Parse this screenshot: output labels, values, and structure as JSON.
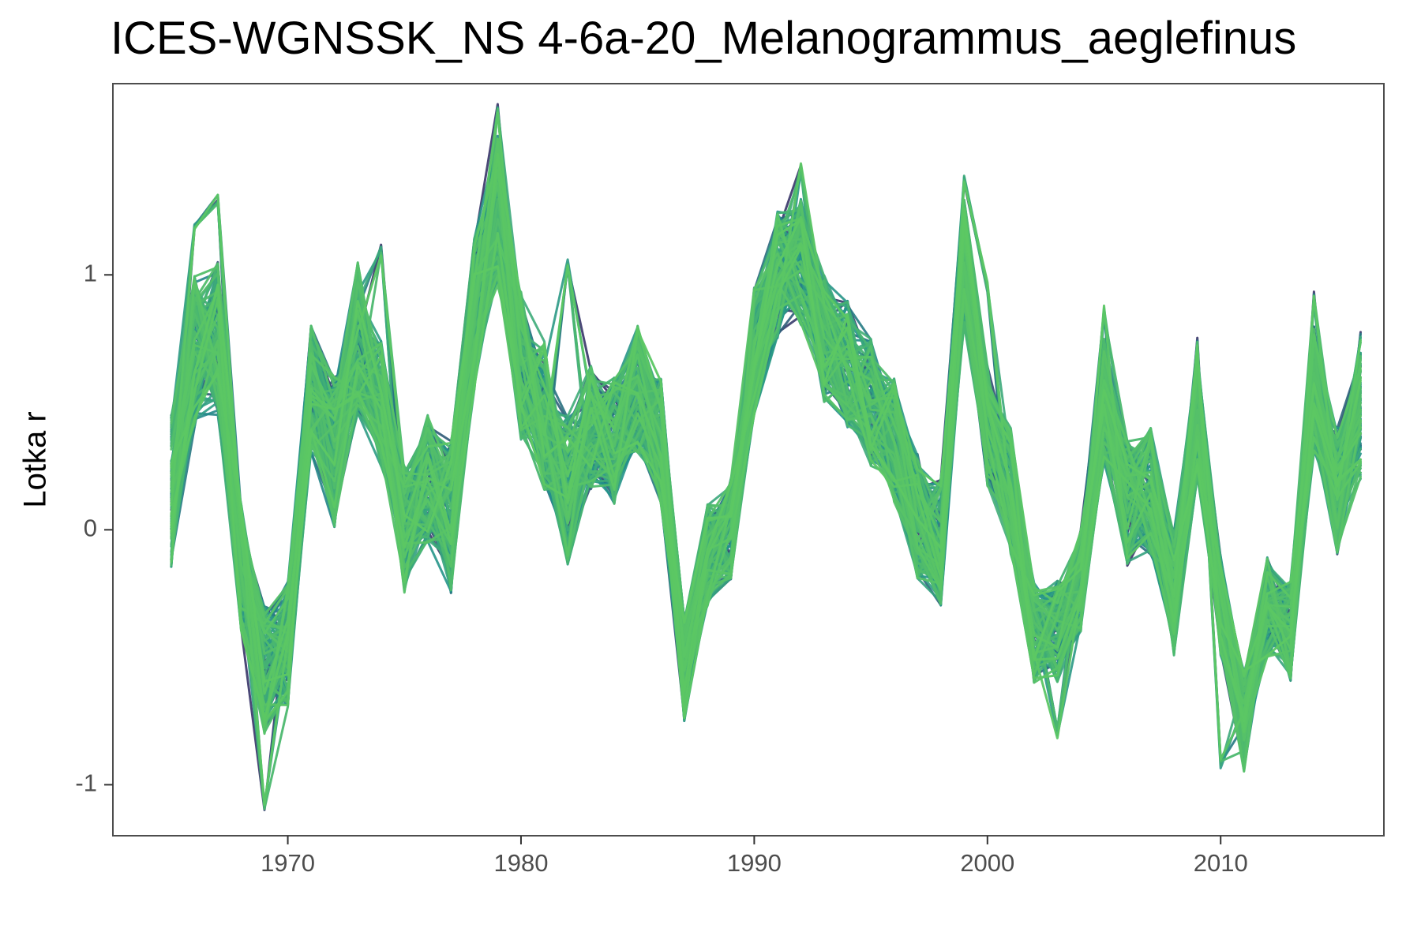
{
  "chart_data": {
    "type": "line",
    "title": "ICES-WGNSSK_NS  4-6a-20_Melanogrammus_aeglefinus",
    "xlabel": "",
    "ylabel": "Lotka r",
    "xlim": [
      1962.5,
      2017
    ],
    "ylim": [
      -1.2,
      1.75
    ],
    "x_ticks": [
      1970,
      1980,
      1990,
      2000,
      2010
    ],
    "y_ticks": [
      -1,
      0,
      1
    ],
    "grid": false,
    "legend": "none",
    "colors": {
      "viridis_low": "#440154",
      "viridis_mid": "#21908C",
      "viridis_high": "#5DC863",
      "panel_border": "#4d4d4d"
    },
    "x": [
      1965,
      1966,
      1967,
      1968,
      1969,
      1970,
      1971,
      1972,
      1973,
      1974,
      1975,
      1976,
      1977,
      1978,
      1979,
      1980,
      1981,
      1982,
      1983,
      1984,
      1985,
      1986,
      1987,
      1988,
      1989,
      1990,
      1991,
      1992,
      1993,
      1994,
      1995,
      1996,
      1997,
      1998,
      1999,
      2000,
      2001,
      2002,
      2003,
      2004,
      2005,
      2006,
      2007,
      2008,
      2009,
      2010,
      2011,
      2012,
      2013,
      2014,
      2015,
      2016
    ],
    "central_trajectory": [
      0.15,
      0.7,
      0.75,
      -0.15,
      -0.55,
      -0.45,
      0.55,
      0.3,
      0.75,
      0.5,
      0.0,
      0.2,
      0.05,
      0.85,
      1.25,
      0.65,
      0.45,
      0.15,
      0.4,
      0.35,
      0.55,
      0.35,
      -0.55,
      -0.1,
      0.0,
      0.7,
      1.0,
      1.05,
      0.75,
      0.65,
      0.5,
      0.35,
      0.05,
      -0.05,
      1.05,
      0.4,
      0.15,
      -0.4,
      -0.4,
      -0.2,
      0.5,
      0.1,
      0.15,
      -0.25,
      0.45,
      -0.3,
      -0.75,
      -0.3,
      -0.4,
      0.55,
      0.15,
      0.45
    ],
    "spread": [
      0.3,
      0.3,
      0.3,
      0.25,
      0.25,
      0.25,
      0.25,
      0.3,
      0.3,
      0.25,
      0.25,
      0.25,
      0.3,
      0.3,
      0.3,
      0.3,
      0.3,
      0.3,
      0.25,
      0.25,
      0.25,
      0.25,
      0.2,
      0.2,
      0.2,
      0.25,
      0.25,
      0.25,
      0.25,
      0.25,
      0.25,
      0.25,
      0.25,
      0.25,
      0.25,
      0.25,
      0.25,
      0.2,
      0.2,
      0.2,
      0.25,
      0.25,
      0.25,
      0.25,
      0.25,
      0.2,
      0.2,
      0.2,
      0.2,
      0.25,
      0.25,
      0.25
    ],
    "series_count": 120,
    "random_seed": 42,
    "highlighted_peaks": {
      "1966": 1.18,
      "1967": 1.3,
      "1969": -1.08,
      "1974": 1.1,
      "1979": 1.65,
      "1982": 1.05,
      "1992": 1.42,
      "1999": 1.38,
      "2000": 0.95,
      "2003": -0.8,
      "2005": 0.86,
      "2009": 0.73,
      "2010": -0.92,
      "2014": 0.91,
      "2016": 0.76
    }
  }
}
